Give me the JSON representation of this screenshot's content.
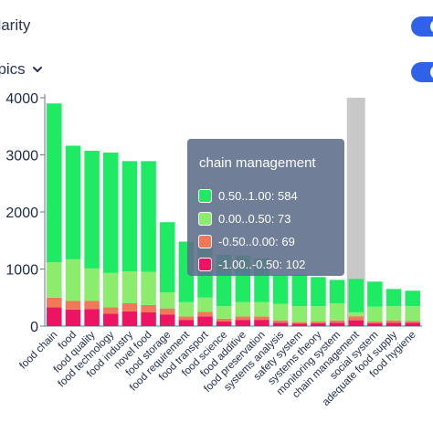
{
  "header": {
    "polarity_label": "olarity",
    "topics_label": "opics"
  },
  "colors": {
    "pos_high": "#1fea63",
    "pos_low": "#8cec6e",
    "neg_low": "#f2785a",
    "neg_high": "#ec1463",
    "toggle": "#2f62e8",
    "highlight": "#c8c8c8"
  },
  "tooltip": {
    "title": "chain management",
    "items": [
      {
        "label": "0.50..1.00: 584",
        "color": "#1fea63"
      },
      {
        "label": "0.00..0.50: 73",
        "color": "#8cec6e"
      },
      {
        "label": "-0.50..0.00: 69",
        "color": "#f2785a"
      },
      {
        "label": "-1.00..-0.50: 102",
        "color": "#ec1463"
      }
    ]
  },
  "chart_data": {
    "type": "bar",
    "stacked": true,
    "categories": [
      "food chain",
      "food",
      "food quality",
      "food technology",
      "food industry",
      "novel food",
      "food storage",
      "food requirement",
      "food transport",
      "food science",
      "food additive",
      "food preservation",
      "systems analysis",
      "safety system",
      "systems theory",
      "monitoring system",
      "chain management",
      "social system",
      "adequate food supply",
      "food hygiene"
    ],
    "series": [
      {
        "name": "-1.00..-0.50",
        "color": "#ec1463",
        "values": [
          330,
          290,
          300,
          220,
          260,
          240,
          200,
          110,
          170,
          80,
          110,
          110,
          60,
          40,
          50,
          60,
          102,
          50,
          60,
          60
        ]
      },
      {
        "name": "-0.50..0.00",
        "color": "#f2785a",
        "values": [
          170,
          150,
          140,
          110,
          140,
          130,
          110,
          60,
          80,
          50,
          60,
          60,
          40,
          30,
          30,
          40,
          69,
          30,
          40,
          30
        ]
      },
      {
        "name": "0.00..0.50",
        "color": "#8cec6e",
        "values": [
          620,
          730,
          570,
          600,
          560,
          580,
          280,
          250,
          250,
          220,
          250,
          250,
          290,
          280,
          270,
          300,
          73,
          260,
          250,
          260
        ]
      },
      {
        "name": "0.50..1.00",
        "color": "#1fea63",
        "values": [
          2780,
          1990,
          2060,
          2110,
          1930,
          1940,
          1230,
          1060,
          940,
          900,
          820,
          770,
          500,
          550,
          510,
          410,
          584,
          440,
          300,
          270
        ]
      }
    ],
    "yticks": [
      0,
      1000,
      2000,
      3000,
      4000
    ],
    "ylim": [
      0,
      4000
    ],
    "highlight_index": 16
  }
}
